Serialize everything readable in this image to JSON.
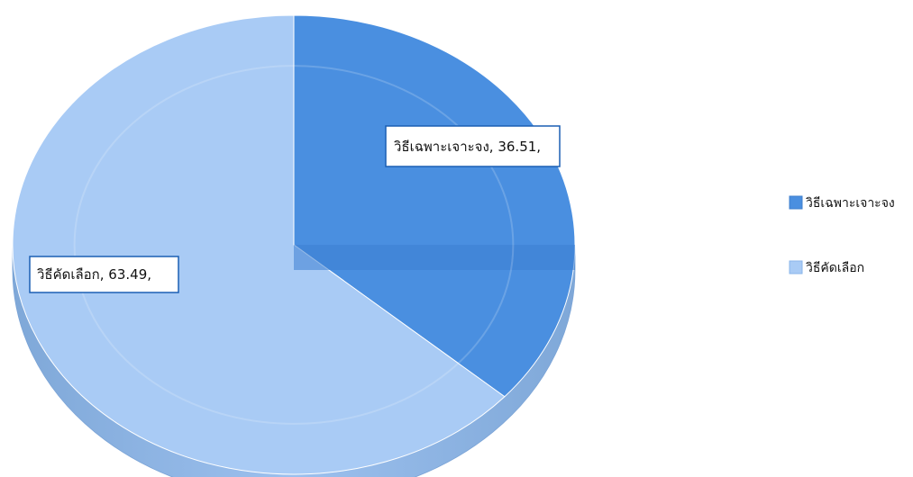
{
  "chart_data": {
    "type": "pie",
    "three_d": true,
    "slices": [
      {
        "label": "วิธีเฉพาะเจาะจง",
        "value": 36.51,
        "data_label": "วิธีเฉพาะเจาะจง, 36.51,",
        "color": "#4a8fe0"
      },
      {
        "label": "วิธีคัดเลือก",
        "value": 63.49,
        "data_label": "วิธีคัดเลือก, 63.49,",
        "color": "#a9cbf5"
      }
    ],
    "legend": {
      "placement": "right",
      "entries": [
        "วิธีเฉพาะเจาะจง",
        "วิธีคัดเลือก"
      ]
    }
  }
}
